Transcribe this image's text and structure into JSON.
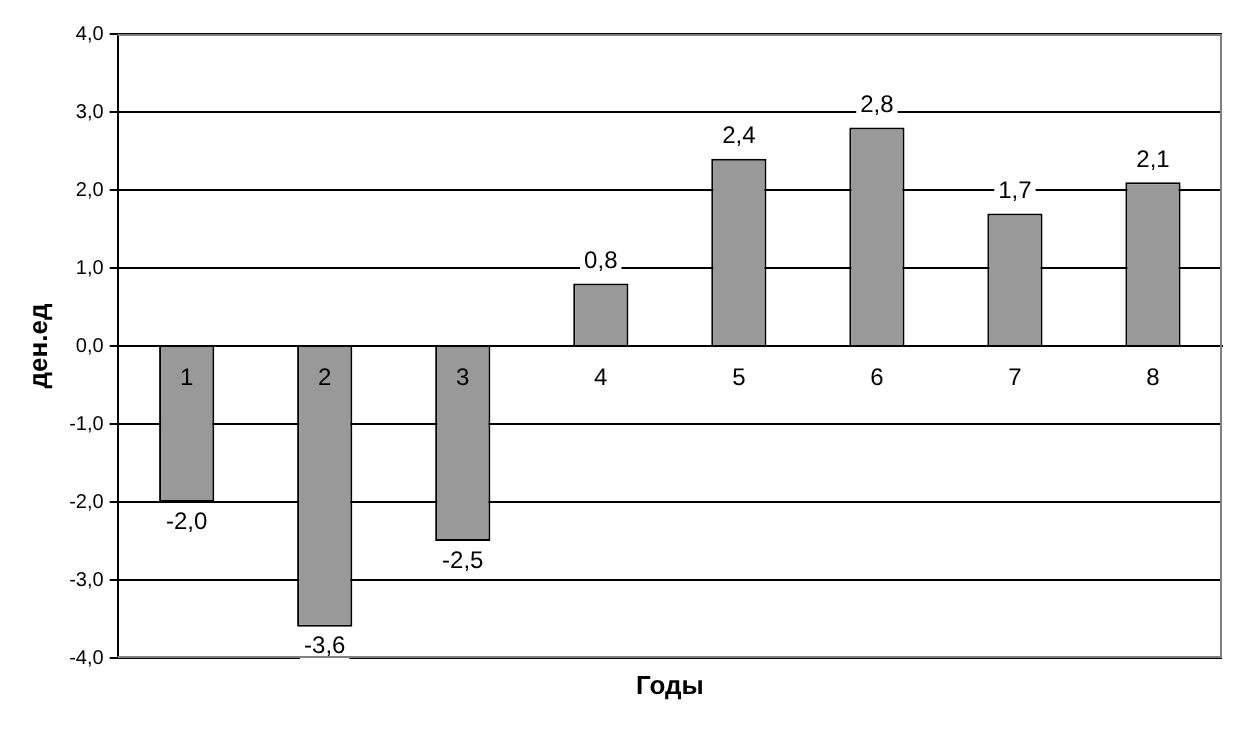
{
  "chart_data": {
    "type": "bar",
    "xlabel": "Годы",
    "ylabel": "ден.ед",
    "categories": [
      "1",
      "2",
      "3",
      "4",
      "5",
      "6",
      "7",
      "8"
    ],
    "values": [
      -2.0,
      -3.6,
      -2.5,
      0.8,
      2.4,
      2.8,
      1.7,
      2.1
    ],
    "value_labels": [
      "-2,0",
      "-3,6",
      "-2,5",
      "0,8",
      "2,4",
      "2,8",
      "1,7",
      "2,1"
    ],
    "color": "#999999",
    "ylim": [
      -4,
      4
    ],
    "yticks": [
      {
        "value": -4,
        "label": "-4,0"
      },
      {
        "value": -3,
        "label": "-3,0"
      },
      {
        "value": -2,
        "label": "-2,0"
      },
      {
        "value": -1,
        "label": "-1,0"
      },
      {
        "value": 0,
        "label": "0,0"
      },
      {
        "value": 1,
        "label": "1,0"
      },
      {
        "value": 2,
        "label": "2,0"
      },
      {
        "value": 3,
        "label": "3,0"
      },
      {
        "value": 4,
        "label": "4,0"
      }
    ],
    "grid": "y",
    "legend": false
  }
}
